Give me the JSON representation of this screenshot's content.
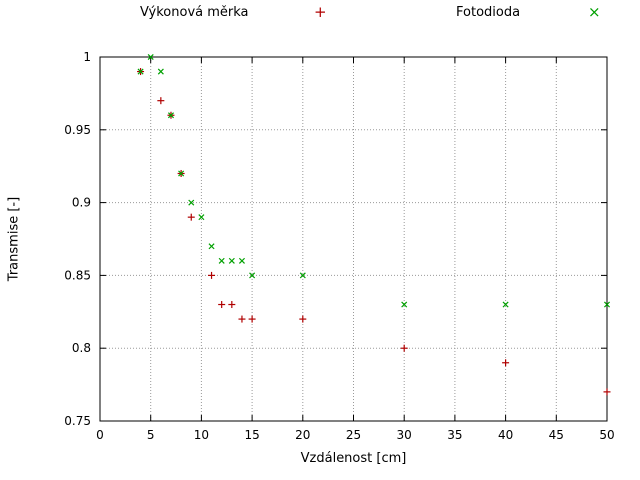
{
  "legend": [
    {
      "label": "Výkonová měrka",
      "marker_glyph": "+",
      "color": "#b00000"
    },
    {
      "label": "Fotodioda",
      "marker_glyph": "×",
      "color": "#00a000"
    }
  ],
  "chart_data": {
    "type": "scatter",
    "title": "",
    "xlabel": "Vzdálenost [cm]",
    "ylabel": "Transmise [-]",
    "xlim": [
      0,
      50
    ],
    "ylim": [
      0.75,
      1
    ],
    "grid": true,
    "legend_position": "top",
    "xticks": [
      0,
      5,
      10,
      15,
      20,
      25,
      30,
      35,
      40,
      45,
      50
    ],
    "xtick_labels": [
      "0",
      "5",
      "10",
      "15",
      "20",
      "25",
      "30",
      "35",
      "40",
      "45",
      "50"
    ],
    "yticks": [
      0.75,
      0.8,
      0.85,
      0.9,
      0.95,
      1
    ],
    "ytick_labels": [
      "0.75",
      "0.8",
      "0.85",
      "0.9",
      "0.95",
      "1"
    ],
    "series": [
      {
        "name": "Výkonová měrka",
        "marker": "plus",
        "color": "#b00000",
        "points": [
          [
            4,
            0.99
          ],
          [
            6,
            0.97
          ],
          [
            7,
            0.96
          ],
          [
            8,
            0.92
          ],
          [
            9,
            0.89
          ],
          [
            11,
            0.85
          ],
          [
            12,
            0.83
          ],
          [
            13,
            0.83
          ],
          [
            14,
            0.82
          ],
          [
            15,
            0.82
          ],
          [
            20,
            0.82
          ],
          [
            30,
            0.8
          ],
          [
            40,
            0.79
          ],
          [
            50,
            0.77
          ]
        ]
      },
      {
        "name": "Fotodioda",
        "marker": "cross",
        "color": "#00a000",
        "points": [
          [
            4,
            0.99
          ],
          [
            5,
            1.0
          ],
          [
            6,
            0.99
          ],
          [
            7,
            0.96
          ],
          [
            8,
            0.92
          ],
          [
            9,
            0.9
          ],
          [
            10,
            0.89
          ],
          [
            11,
            0.87
          ],
          [
            12,
            0.86
          ],
          [
            13,
            0.86
          ],
          [
            14,
            0.86
          ],
          [
            15,
            0.85
          ],
          [
            20,
            0.85
          ],
          [
            30,
            0.83
          ],
          [
            40,
            0.83
          ],
          [
            50,
            0.83
          ]
        ]
      }
    ]
  }
}
